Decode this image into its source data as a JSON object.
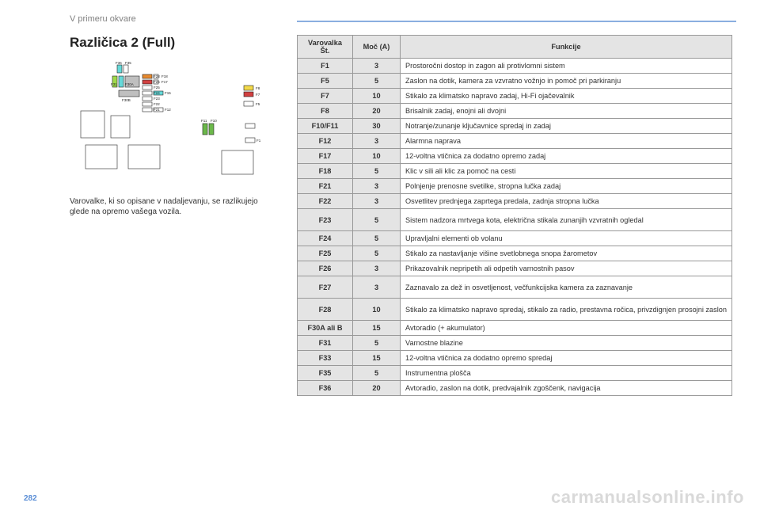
{
  "chapter": "V primeru okvare",
  "title": "Različica 2 (Full)",
  "note": "Varovalke, ki so opisane v nadaljevanju, se razlikujejo glede na opremo vašega vozila.",
  "page_number": "282",
  "watermark": "carmanualsonline.info",
  "table": {
    "headers": {
      "num": "Varovalka Št.",
      "amp": "Moč (A)",
      "func": "Funkcije"
    },
    "rows": [
      {
        "num": "F1",
        "amp": "3",
        "func": "Prostoročni dostop in zagon ali protivlomni sistem"
      },
      {
        "num": "F5",
        "amp": "5",
        "func": "Zaslon na dotik, kamera za vzvratno vožnjo in pomoč pri parkiranju"
      },
      {
        "num": "F7",
        "amp": "10",
        "func": "Stikalo za klimatsko napravo zadaj, Hi-Fi ojačevalnik"
      },
      {
        "num": "F8",
        "amp": "20",
        "func": "Brisalnik zadaj, enojni ali dvojni"
      },
      {
        "num": "F10/F11",
        "amp": "30",
        "func": "Notranje/zunanje ključavnice spredaj in zadaj"
      },
      {
        "num": "F12",
        "amp": "3",
        "func": "Alarmna naprava"
      },
      {
        "num": "F17",
        "amp": "10",
        "func": "12-voltna vtičnica za dodatno opremo zadaj"
      },
      {
        "num": "F18",
        "amp": "5",
        "func": "Klic v sili ali klic za pomoč na cesti"
      },
      {
        "num": "F21",
        "amp": "3",
        "func": "Polnjenje prenosne svetilke, stropna lučka zadaj"
      },
      {
        "num": "F22",
        "amp": "3",
        "func": "Osvetlitev prednjega zaprtega predala, zadnja stropna lučka"
      },
      {
        "num": "F23",
        "amp": "5",
        "func": "Sistem nadzora mrtvega kota, električna stikala zunanjih vzvratnih ogledal",
        "tall": true
      },
      {
        "num": "F24",
        "amp": "5",
        "func": "Upravljalni elementi ob volanu"
      },
      {
        "num": "F25",
        "amp": "5",
        "func": "Stikalo za nastavljanje višine svetlobnega snopa žarometov"
      },
      {
        "num": "F26",
        "amp": "3",
        "func": "Prikazovalnik nepripetih ali odpetih varnostnih pasov"
      },
      {
        "num": "F27",
        "amp": "3",
        "func": "Zaznavalo za dež in osvetljenost, večfunkcijska kamera za zaznavanje",
        "tall": true
      },
      {
        "num": "F28",
        "amp": "10",
        "func": "Stikalo za klimatsko napravo spredaj, stikalo za radio, prestavna ročica, privzdignjen prosojni zaslon",
        "tall": true
      },
      {
        "num": "F30A ali B",
        "amp": "15",
        "func": "Avtoradio (+ akumulator)"
      },
      {
        "num": "F31",
        "amp": "5",
        "func": "Varnostne blazine"
      },
      {
        "num": "F33",
        "amp": "15",
        "func": "12-voltna vtičnica za dodatno opremo spredaj"
      },
      {
        "num": "F35",
        "amp": "5",
        "func": "Instrumentna plošča"
      },
      {
        "num": "F36",
        "amp": "20",
        "func": "Avtoradio, zaslon na dotik, predvajalnik zgoščenk, navigacija"
      }
    ]
  },
  "diagram": {
    "label_font": 4.5,
    "stroke": "#333333",
    "colors": {
      "cyan": "#66d9d9",
      "red": "#d14040",
      "yellow": "#f2d94a",
      "green": "#6bb84a",
      "orange": "#e88a2e",
      "gray": "#bfbfbf",
      "lime": "#9fd94a",
      "white": "#ffffff"
    }
  }
}
